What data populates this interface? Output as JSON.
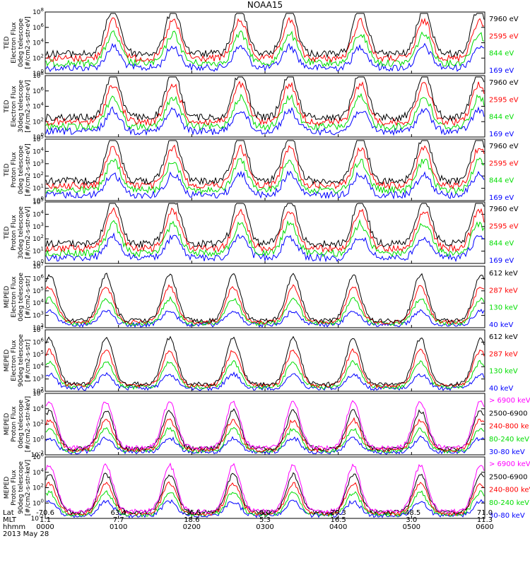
{
  "title": "NOAA15",
  "footer": {
    "rows": [
      {
        "label": "Lat",
        "values": [
          "-70.6",
          "63.4",
          "-36.5",
          "8.0",
          "20.3",
          "-48.5",
          "71.0"
        ]
      },
      {
        "label": "MLT",
        "values": [
          "1.1",
          "7.7",
          "18.6",
          "5.3",
          "16.5",
          "3.0",
          "11.3"
        ]
      },
      {
        "label": "hhmm",
        "values": [
          "0000",
          "0100",
          "0200",
          "0300",
          "0400",
          "0500",
          "0600"
        ]
      }
    ],
    "date": "2013 May 28"
  },
  "chart_data": [
    {
      "type": "line",
      "ylabel": [
        "TED",
        "Electron Flux",
        "0deg telescope",
        "[#/cm2-s-str-eV]"
      ],
      "yscale": "log",
      "ylim": [
        1,
        1000000
      ],
      "ytick_labels": [
        {
          "base": "10",
          "exp": "0"
        },
        {
          "base": "10",
          "exp": "2"
        },
        {
          "base": "10",
          "exp": "4"
        },
        {
          "base": "10",
          "exp": "6"
        },
        {
          "base": "10",
          "exp": "8"
        }
      ],
      "legend": [
        {
          "name": "7960 eV",
          "color": "#000000"
        },
        {
          "name": "2595 eV",
          "color": "#ff0000"
        },
        {
          "name": "844 eV",
          "color": "#00dd00"
        },
        {
          "name": "169 eV",
          "color": "#0000ff"
        }
      ]
    },
    {
      "type": "line",
      "ylabel": [
        "TED",
        "Electron Flux",
        "30deg telescope",
        "[#/cm2-s-str-eV]"
      ],
      "yscale": "log",
      "ylim": [
        1,
        1000000
      ],
      "ytick_labels": [
        {
          "base": "10",
          "exp": "0"
        },
        {
          "base": "10",
          "exp": "2"
        },
        {
          "base": "10",
          "exp": "4"
        },
        {
          "base": "10",
          "exp": "6"
        },
        {
          "base": "10",
          "exp": "8"
        }
      ],
      "legend": [
        {
          "name": "7960 eV",
          "color": "#000000"
        },
        {
          "name": "2595 eV",
          "color": "#ff0000"
        },
        {
          "name": "844 eV",
          "color": "#00dd00"
        },
        {
          "name": "169 eV",
          "color": "#0000ff"
        }
      ]
    },
    {
      "type": "line",
      "ylabel": [
        "TED",
        "Proton Flux",
        "0deg telescope",
        "[#/cm2-s-str-eV]"
      ],
      "yscale": "log",
      "ylim": [
        1,
        100000
      ],
      "ytick_labels": [
        {
          "base": "10",
          "exp": "0"
        },
        {
          "base": "10",
          "exp": "1"
        },
        {
          "base": "10",
          "exp": "2"
        },
        {
          "base": "10",
          "exp": "3"
        },
        {
          "base": "10",
          "exp": "4"
        },
        {
          "base": "10",
          "exp": "5"
        }
      ],
      "legend": [
        {
          "name": "7960 eV",
          "color": "#000000"
        },
        {
          "name": "2595 eV",
          "color": "#ff0000"
        },
        {
          "name": "844 eV",
          "color": "#00dd00"
        },
        {
          "name": "169 eV",
          "color": "#0000ff"
        }
      ]
    },
    {
      "type": "line",
      "ylabel": [
        "TED",
        "Proton Flux",
        "30deg telescope",
        "[#/cm2-s-str-eV]"
      ],
      "yscale": "log",
      "ylim": [
        1,
        100000
      ],
      "ytick_labels": [
        {
          "base": "10",
          "exp": "0"
        },
        {
          "base": "10",
          "exp": "1"
        },
        {
          "base": "10",
          "exp": "2"
        },
        {
          "base": "10",
          "exp": "3"
        },
        {
          "base": "10",
          "exp": "4"
        },
        {
          "base": "10",
          "exp": "5"
        }
      ],
      "legend": [
        {
          "name": "7960 eV",
          "color": "#000000"
        },
        {
          "name": "2595 eV",
          "color": "#ff0000"
        },
        {
          "name": "844 eV",
          "color": "#00dd00"
        },
        {
          "name": "169 eV",
          "color": "#0000ff"
        }
      ]
    },
    {
      "type": "line",
      "ylabel": [
        "MEPED",
        "Electron Flux",
        "0deg telescope",
        "[#/cm2-s-str]"
      ],
      "yscale": "log",
      "ylim": [
        100,
        10000000
      ],
      "ytick_labels": [
        {
          "base": "10",
          "exp": "2"
        },
        {
          "base": "10",
          "exp": "3"
        },
        {
          "base": "10",
          "exp": "4"
        },
        {
          "base": "10",
          "exp": "5"
        },
        {
          "base": "10",
          "exp": "6"
        },
        {
          "base": "10",
          "exp": "7"
        }
      ],
      "legend": [
        {
          "name": "612 keV",
          "color": "#000000"
        },
        {
          "name": "287 keV",
          "color": "#ff0000"
        },
        {
          "name": "130 keV",
          "color": "#00dd00"
        },
        {
          "name": "40 keV",
          "color": "#0000ff"
        }
      ]
    },
    {
      "type": "line",
      "ylabel": [
        "MEPED",
        "Electron Flux",
        "90deg telescope",
        "[#/cm2-s-str]"
      ],
      "yscale": "log",
      "ylim": [
        100,
        10000000
      ],
      "ytick_labels": [
        {
          "base": "10",
          "exp": "2"
        },
        {
          "base": "10",
          "exp": "3"
        },
        {
          "base": "10",
          "exp": "4"
        },
        {
          "base": "10",
          "exp": "5"
        },
        {
          "base": "10",
          "exp": "6"
        },
        {
          "base": "10",
          "exp": "7"
        }
      ],
      "legend": [
        {
          "name": "612 keV",
          "color": "#000000"
        },
        {
          "name": "287 keV",
          "color": "#ff0000"
        },
        {
          "name": "130 keV",
          "color": "#00dd00"
        },
        {
          "name": "40 keV",
          "color": "#0000ff"
        }
      ]
    },
    {
      "type": "line",
      "ylabel": [
        "MEPED",
        "Proton Flux",
        "0deg telescope",
        "[#/cm2-s-str-keV]"
      ],
      "yscale": "log",
      "ylim": [
        0.01,
        1000000
      ],
      "ytick_labels": [
        {
          "base": "10",
          "exp": "-2"
        },
        {
          "base": "10",
          "exp": "0"
        },
        {
          "base": "10",
          "exp": "2"
        },
        {
          "base": "10",
          "exp": "4"
        },
        {
          "base": "10",
          "exp": "6"
        }
      ],
      "legend": [
        {
          "name": "> 6900 keV",
          "color": "#ff00ff"
        },
        {
          "name": "2500-6900",
          "color": "#000000"
        },
        {
          "name": "240-800 ke",
          "color": "#ff0000"
        },
        {
          "name": "80-240 keV",
          "color": "#00dd00"
        },
        {
          "name": "30-80 keV",
          "color": "#0000ff"
        }
      ]
    },
    {
      "type": "line",
      "ylabel": [
        "MEPED",
        "Proton Flux",
        "90deg telescope",
        "[#/cm2-s-str-keV]"
      ],
      "yscale": "log",
      "ylim": [
        0.01,
        1000000
      ],
      "ytick_labels": [
        {
          "base": "10",
          "exp": "-2"
        },
        {
          "base": "10",
          "exp": "0"
        },
        {
          "base": "10",
          "exp": "2"
        },
        {
          "base": "10",
          "exp": "4"
        },
        {
          "base": "10",
          "exp": "6"
        }
      ],
      "legend": [
        {
          "name": "> 6900 keV",
          "color": "#ff00ff"
        },
        {
          "name": "2500-6900",
          "color": "#000000"
        },
        {
          "name": "240-800 keV",
          "color": "#ff0000"
        },
        {
          "name": "80-240 keV",
          "color": "#00dd00"
        },
        {
          "name": "30-80 keV",
          "color": "#0000ff"
        }
      ]
    }
  ]
}
